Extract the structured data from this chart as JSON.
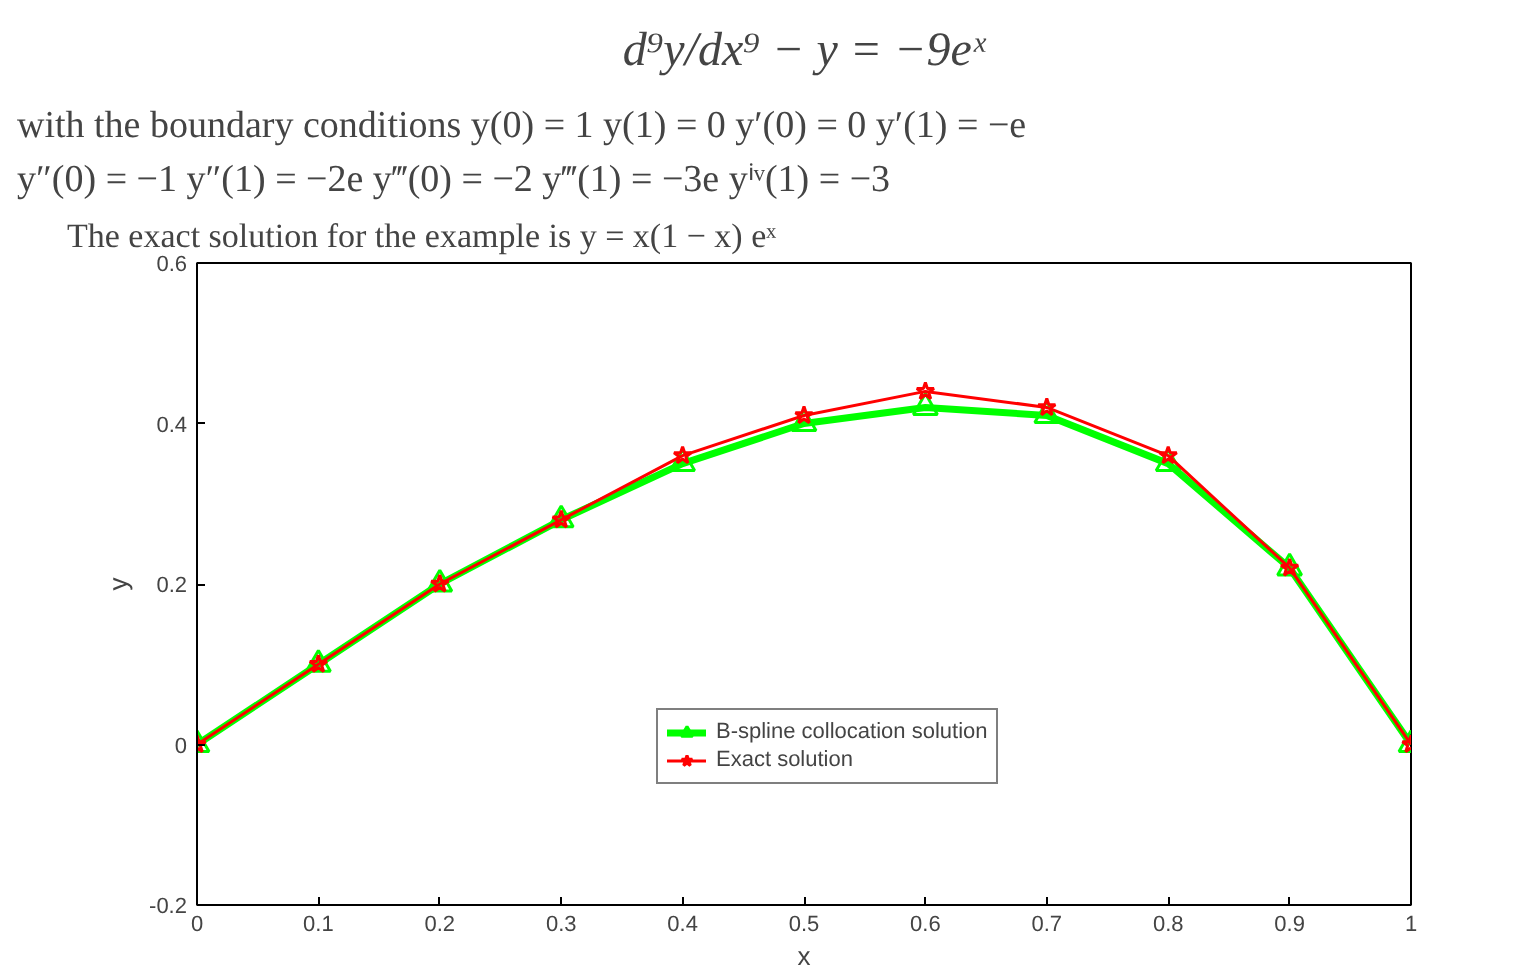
{
  "chart_data": {
    "type": "line",
    "title": "d⁹y/dx⁹ − y = −9eˣ",
    "annotations": [
      "with the boundary conditions  y(0) = 1   y(1) = 0   y′(0) = 0   y′(1) = −e",
      "y″(0) = −1  y″(1) = −2e  y‴(0) = −2  y‴(1) = −3e  yⁱᵛ(1) = −3",
      "The exact solution for the example is  y = x(1 − x) eˣ"
    ],
    "xlabel": "x",
    "ylabel": "y",
    "x": [
      0,
      0.1,
      0.2,
      0.3,
      0.4,
      0.5,
      0.6,
      0.7,
      0.8,
      0.9,
      1
    ],
    "series": [
      {
        "name": "B-spline collocation solution",
        "color": "#00ff00",
        "marker": "triangle",
        "values": [
          0,
          0.1,
          0.2,
          0.28,
          0.35,
          0.4,
          0.42,
          0.41,
          0.35,
          0.22,
          0
        ]
      },
      {
        "name": "Exact solution",
        "color": "#ff0000",
        "marker": "star",
        "values": [
          0,
          0.1,
          0.2,
          0.28,
          0.36,
          0.41,
          0.44,
          0.42,
          0.36,
          0.22,
          0
        ]
      }
    ],
    "xlim": [
      0,
      1
    ],
    "ylim": [
      -0.2,
      0.6
    ],
    "xticks": [
      0,
      0.1,
      0.2,
      0.3,
      0.4,
      0.5,
      0.6,
      0.7,
      0.8,
      0.9,
      1
    ],
    "yticks": [
      -0.2,
      0,
      0.2,
      0.4,
      0.6
    ],
    "grid": false,
    "legend": "center",
    "line_style": "solid"
  }
}
